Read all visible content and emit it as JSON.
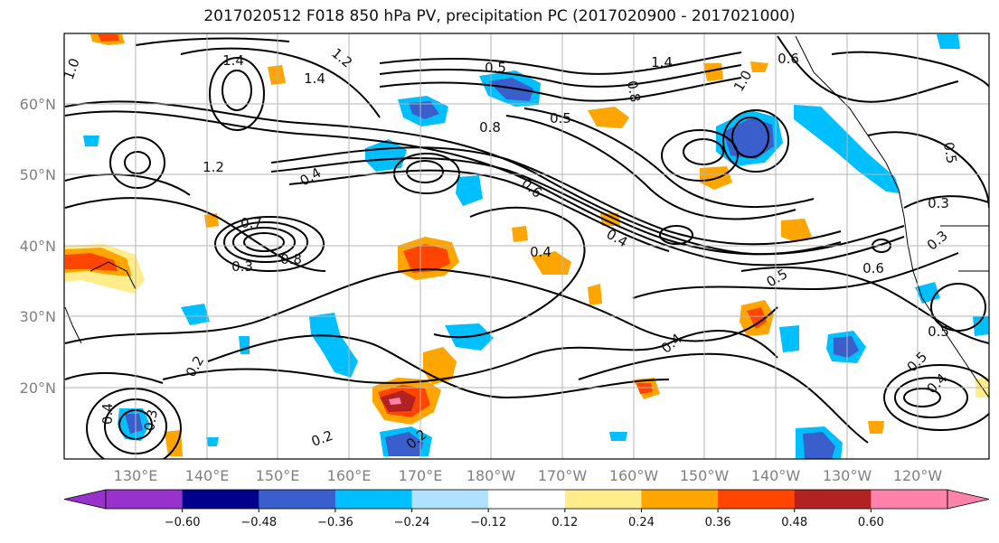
{
  "title": "2017020512 F018 850 hPa PV, precipitation PC (2017020900 - 2017021000)",
  "map": {
    "lat_labels": [
      "60°N",
      "50°N",
      "40°N",
      "30°N",
      "20°N"
    ],
    "lon_labels": [
      "130°E",
      "140°E",
      "150°E",
      "160°E",
      "170°E",
      "180°W",
      "170°W",
      "160°W",
      "150°W",
      "140°W",
      "130°W",
      "120°W"
    ],
    "contour_labels": [
      "1.4",
      "1.2",
      "1.4",
      "1.0",
      "0.5",
      "0.8",
      "0.5",
      "1.4",
      "0.6",
      "0.8",
      "1.0",
      "1.2",
      "0.4",
      "0.7",
      "0.3",
      "0.8",
      "0.4",
      "0.6",
      "0.4",
      "0.3",
      "0.6",
      "0.5",
      "0.4",
      "0.5",
      "0.5",
      "0.4",
      "0.2",
      "0.4",
      "0.3",
      "0.2",
      "0.2",
      "0.5",
      "0.3"
    ]
  },
  "colorbar": {
    "ticks": [
      "−0.60",
      "−0.48",
      "−0.36",
      "−0.24",
      "−0.12",
      "0.12",
      "0.24",
      "0.36",
      "0.48",
      "0.60"
    ],
    "colors": [
      "#9932cc",
      "#00008b",
      "#3a5fcd",
      "#00bfff",
      "#b0e2ff",
      "#ffffff",
      "#ffec8b",
      "#ffa500",
      "#ff4500",
      "#b22222",
      "#ff82ab"
    ]
  }
}
